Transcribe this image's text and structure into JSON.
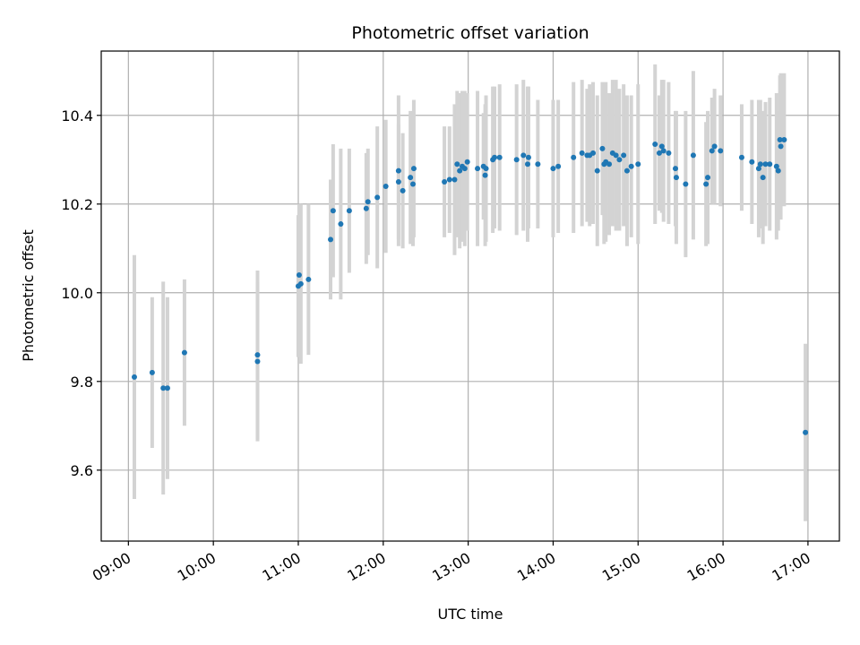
{
  "chart_data": {
    "type": "scatter",
    "title": "Photometric offset variation",
    "xlabel": "UTC time",
    "ylabel": "Photometric offset",
    "x_ticks": [
      "09:00",
      "10:00",
      "11:00",
      "12:00",
      "13:00",
      "14:00",
      "15:00",
      "16:00",
      "17:00"
    ],
    "y_ticks": [
      "9.6",
      "9.8",
      "10.0",
      "10.2",
      "10.4"
    ],
    "x_unit": "hours (UTC)",
    "xlim": [
      8.68,
      17.37
    ],
    "ylim": [
      9.44,
      10.545
    ],
    "grid": true,
    "colors": {
      "point": "#1f77b4",
      "errorbar": "#d3d3d3",
      "grid": "#b0b0b0"
    },
    "points": [
      [
        9.07,
        9.81,
        0.275
      ],
      [
        9.28,
        9.82,
        0.17
      ],
      [
        9.41,
        9.785,
        0.24
      ],
      [
        9.46,
        9.785,
        0.205
      ],
      [
        9.66,
        9.865,
        0.165
      ],
      [
        10.52,
        9.86,
        0.19
      ],
      [
        10.52,
        9.845,
        0.18
      ],
      [
        11.0,
        10.015,
        0.16
      ],
      [
        11.01,
        10.04,
        0.16
      ],
      [
        11.03,
        10.02,
        0.18
      ],
      [
        11.12,
        10.03,
        0.17
      ],
      [
        11.38,
        10.12,
        0.135
      ],
      [
        11.41,
        10.185,
        0.15
      ],
      [
        11.5,
        10.155,
        0.17
      ],
      [
        11.6,
        10.185,
        0.14
      ],
      [
        11.8,
        10.19,
        0.125
      ],
      [
        11.82,
        10.205,
        0.12
      ],
      [
        11.93,
        10.215,
        0.16
      ],
      [
        12.03,
        10.24,
        0.15
      ],
      [
        12.18,
        10.25,
        0.13
      ],
      [
        12.18,
        10.275,
        0.17
      ],
      [
        12.23,
        10.23,
        0.13
      ],
      [
        12.32,
        10.26,
        0.15
      ],
      [
        12.35,
        10.245,
        0.14
      ],
      [
        12.36,
        10.28,
        0.155
      ],
      [
        12.72,
        10.25,
        0.125
      ],
      [
        12.78,
        10.255,
        0.12
      ],
      [
        12.84,
        10.255,
        0.17
      ],
      [
        12.87,
        10.29,
        0.165
      ],
      [
        12.9,
        10.275,
        0.175
      ],
      [
        12.93,
        10.285,
        0.17
      ],
      [
        12.96,
        10.28,
        0.175
      ],
      [
        12.99,
        10.295,
        0.155
      ],
      [
        13.11,
        10.28,
        0.175
      ],
      [
        13.18,
        10.285,
        0.12
      ],
      [
        13.2,
        10.265,
        0.16
      ],
      [
        13.21,
        10.28,
        0.165
      ],
      [
        13.29,
        10.3,
        0.165
      ],
      [
        13.31,
        10.305,
        0.16
      ],
      [
        13.37,
        10.305,
        0.165
      ],
      [
        13.57,
        10.3,
        0.17
      ],
      [
        13.65,
        10.31,
        0.17
      ],
      [
        13.7,
        10.29,
        0.175
      ],
      [
        13.71,
        10.305,
        0.16
      ],
      [
        13.82,
        10.29,
        0.145
      ],
      [
        14.0,
        10.28,
        0.155
      ],
      [
        14.06,
        10.285,
        0.15
      ],
      [
        14.24,
        10.305,
        0.17
      ],
      [
        14.34,
        10.315,
        0.165
      ],
      [
        14.4,
        10.31,
        0.15
      ],
      [
        14.43,
        10.31,
        0.16
      ],
      [
        14.47,
        10.315,
        0.16
      ],
      [
        14.52,
        10.275,
        0.17
      ],
      [
        14.58,
        10.325,
        0.15
      ],
      [
        14.6,
        10.29,
        0.18
      ],
      [
        14.62,
        10.295,
        0.18
      ],
      [
        14.66,
        10.29,
        0.16
      ],
      [
        14.7,
        10.315,
        0.165
      ],
      [
        14.74,
        10.31,
        0.17
      ],
      [
        14.78,
        10.3,
        0.16
      ],
      [
        14.83,
        10.31,
        0.16
      ],
      [
        14.87,
        10.275,
        0.17
      ],
      [
        14.92,
        10.285,
        0.16
      ],
      [
        15.0,
        10.29,
        0.18
      ],
      [
        15.2,
        10.335,
        0.18
      ],
      [
        15.25,
        10.315,
        0.13
      ],
      [
        15.28,
        10.33,
        0.15
      ],
      [
        15.3,
        10.32,
        0.16
      ],
      [
        15.36,
        10.315,
        0.16
      ],
      [
        15.44,
        10.28,
        0.13
      ],
      [
        15.45,
        10.26,
        0.15
      ],
      [
        15.56,
        10.245,
        0.165
      ],
      [
        15.65,
        10.31,
        0.19
      ],
      [
        15.8,
        10.245,
        0.14
      ],
      [
        15.82,
        10.26,
        0.15
      ],
      [
        15.87,
        10.32,
        0.12
      ],
      [
        15.9,
        10.33,
        0.13
      ],
      [
        15.97,
        10.32,
        0.125
      ],
      [
        16.22,
        10.305,
        0.12
      ],
      [
        16.34,
        10.295,
        0.14
      ],
      [
        16.42,
        10.28,
        0.155
      ],
      [
        16.44,
        10.29,
        0.145
      ],
      [
        16.47,
        10.26,
        0.15
      ],
      [
        16.5,
        10.29,
        0.14
      ],
      [
        16.55,
        10.29,
        0.15
      ],
      [
        16.63,
        10.285,
        0.165
      ],
      [
        16.65,
        10.275,
        0.135
      ],
      [
        16.67,
        10.345,
        0.145
      ],
      [
        16.68,
        10.33,
        0.165
      ],
      [
        16.72,
        10.345,
        0.15
      ],
      [
        16.97,
        9.685,
        0.2
      ]
    ]
  }
}
